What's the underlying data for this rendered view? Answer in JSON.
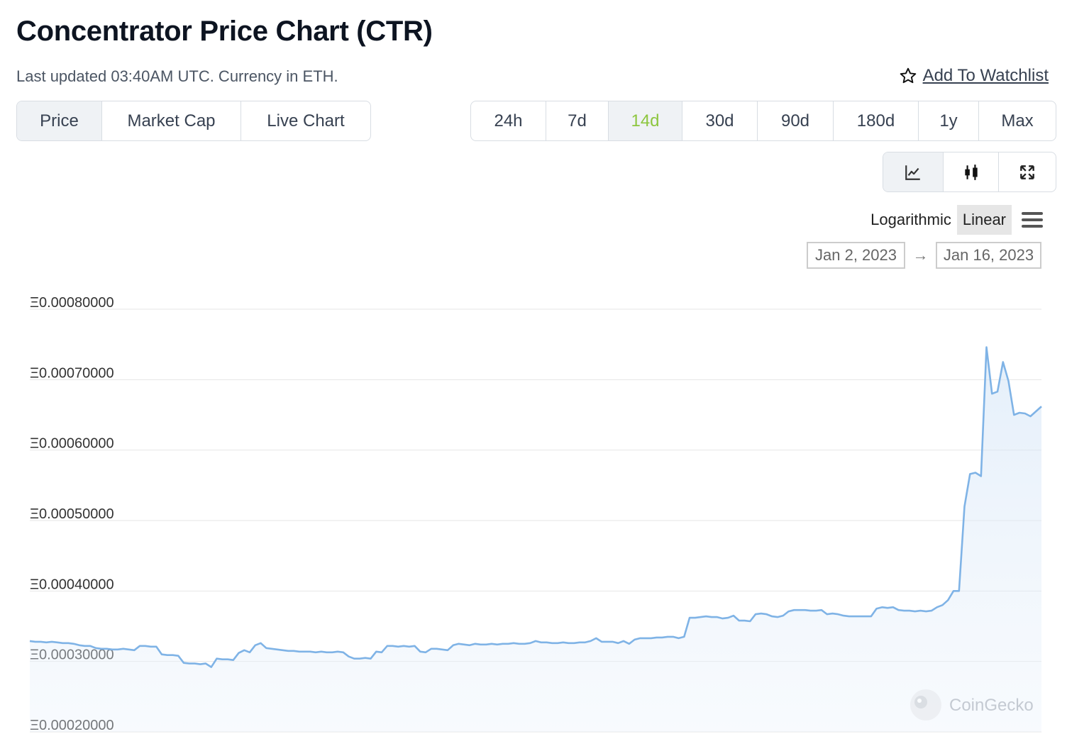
{
  "header": {
    "title": "Concentrator Price Chart (CTR)",
    "subtitle": "Last updated 03:40AM UTC. Currency in ETH.",
    "watchlist_label": "Add To Watchlist"
  },
  "type_tabs": [
    {
      "label": "Price",
      "active": true
    },
    {
      "label": "Market Cap",
      "active": false
    },
    {
      "label": "Live Chart",
      "active": false
    }
  ],
  "range_tabs": [
    {
      "label": "24h",
      "active": false
    },
    {
      "label": "7d",
      "active": false
    },
    {
      "label": "14d",
      "active": true
    },
    {
      "label": "30d",
      "active": false
    },
    {
      "label": "90d",
      "active": false
    },
    {
      "label": "180d",
      "active": false
    },
    {
      "label": "1y",
      "active": false
    },
    {
      "label": "Max",
      "active": false
    }
  ],
  "view_buttons": [
    {
      "icon": "line-chart-icon",
      "active": true
    },
    {
      "icon": "candlestick-icon",
      "active": false
    },
    {
      "icon": "fullscreen-icon",
      "active": false
    }
  ],
  "scale": {
    "logarithmic": "Logarithmic",
    "linear": "Linear",
    "active": "linear"
  },
  "date_range": {
    "from": "Jan 2, 2023",
    "to": "Jan 16, 2023",
    "arrow": "→"
  },
  "watermark": "CoinGecko",
  "colors": {
    "line": "#7fb3e6",
    "active_range": "#8dc63f"
  },
  "chart_data": {
    "type": "area",
    "x_range": [
      "Jan 2, 2023",
      "Jan 16, 2023"
    ],
    "ylim": [
      0.0002,
      0.0008
    ],
    "yticks": [
      "Ξ0.00020000",
      "Ξ0.00030000",
      "Ξ0.00040000",
      "Ξ0.00050000",
      "Ξ0.00060000",
      "Ξ0.00070000",
      "Ξ0.00080000"
    ],
    "ytick_values": [
      0.0002,
      0.0003,
      0.0004,
      0.0005,
      0.0006,
      0.0007,
      0.0008
    ],
    "grid": true,
    "series": [
      {
        "values": [
          0.000329,
          0.000328,
          0.000328,
          0.000327,
          0.000328,
          0.000327,
          0.000326,
          0.000326,
          0.000325,
          0.000323,
          0.000322,
          0.000322,
          0.000319,
          0.000318,
          0.000318,
          0.000317,
          0.000317,
          0.000318,
          0.000317,
          0.000316,
          0.000322,
          0.000322,
          0.000321,
          0.000321,
          0.00031,
          0.000309,
          0.000309,
          0.000308,
          0.000298,
          0.000297,
          0.000297,
          0.000296,
          0.000297,
          0.000292,
          0.000304,
          0.000303,
          0.000303,
          0.000302,
          0.000312,
          0.000316,
          0.000313,
          0.000323,
          0.000326,
          0.000319,
          0.000318,
          0.000317,
          0.000316,
          0.000315,
          0.000315,
          0.000314,
          0.000314,
          0.000314,
          0.000313,
          0.000314,
          0.000313,
          0.000313,
          0.000314,
          0.000313,
          0.000307,
          0.000304,
          0.000304,
          0.000305,
          0.000304,
          0.000314,
          0.000313,
          0.000322,
          0.000322,
          0.000321,
          0.000322,
          0.000321,
          0.000322,
          0.000314,
          0.000313,
          0.000318,
          0.000318,
          0.000317,
          0.000316,
          0.000323,
          0.000325,
          0.000324,
          0.000323,
          0.000325,
          0.000324,
          0.000324,
          0.000325,
          0.000324,
          0.000325,
          0.000325,
          0.000326,
          0.000325,
          0.000325,
          0.000326,
          0.000329,
          0.000327,
          0.000327,
          0.000326,
          0.000326,
          0.000327,
          0.000326,
          0.000326,
          0.000327,
          0.000327,
          0.000329,
          0.000333,
          0.000328,
          0.000328,
          0.000328,
          0.000326,
          0.000329,
          0.000325,
          0.000331,
          0.000333,
          0.000333,
          0.000333,
          0.000334,
          0.000334,
          0.000335,
          0.000335,
          0.000333,
          0.000335,
          0.000362,
          0.000362,
          0.000363,
          0.000364,
          0.000363,
          0.000363,
          0.000361,
          0.000362,
          0.000365,
          0.000358,
          0.000358,
          0.000357,
          0.000367,
          0.000368,
          0.000367,
          0.000364,
          0.000363,
          0.000365,
          0.000371,
          0.000373,
          0.000373,
          0.000373,
          0.000372,
          0.000372,
          0.000373,
          0.000367,
          0.000368,
          0.000367,
          0.000365,
          0.000364,
          0.000364,
          0.000364,
          0.000364,
          0.000364,
          0.000375,
          0.000377,
          0.000376,
          0.000377,
          0.000373,
          0.000372,
          0.000372,
          0.000371,
          0.000372,
          0.000371,
          0.000372,
          0.000377,
          0.00038,
          0.000387,
          0.0004,
          0.0004,
          0.00052,
          0.000566,
          0.000568,
          0.000563,
          0.000746,
          0.00068,
          0.000683,
          0.000725,
          0.000698,
          0.00065,
          0.000653,
          0.000652,
          0.000648,
          0.000655,
          0.000662
        ]
      }
    ]
  }
}
